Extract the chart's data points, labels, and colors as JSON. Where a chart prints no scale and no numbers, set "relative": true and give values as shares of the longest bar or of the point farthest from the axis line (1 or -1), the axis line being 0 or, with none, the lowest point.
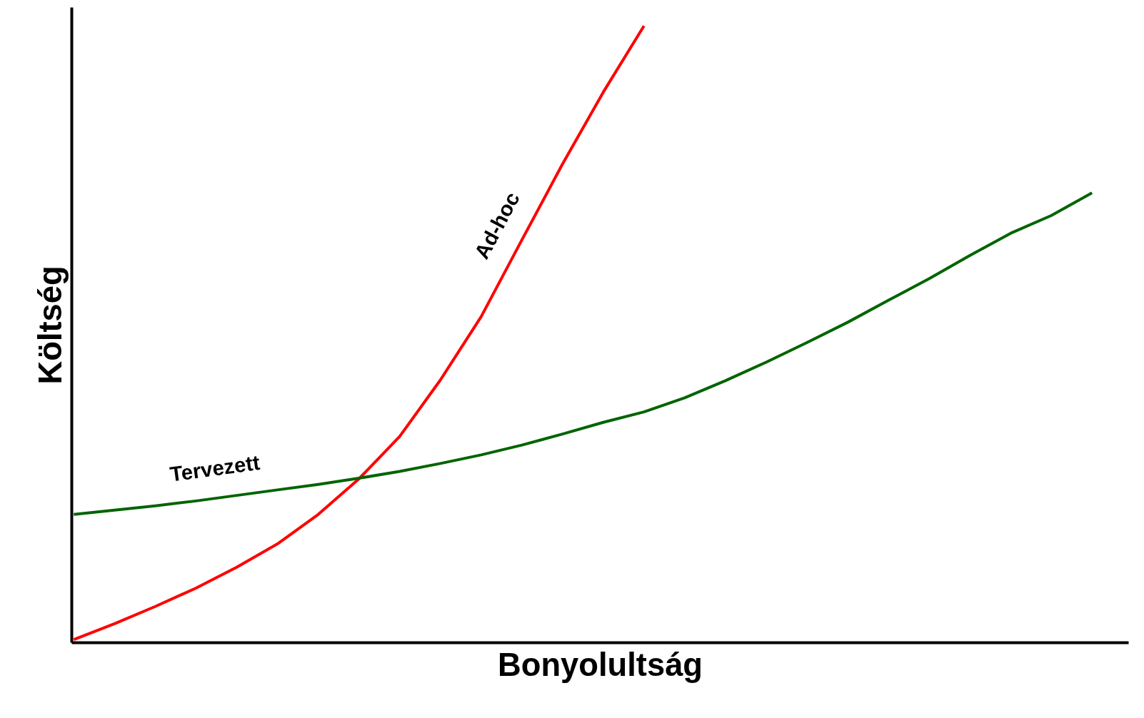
{
  "chart_data": {
    "type": "line",
    "relative": true,
    "xlabel": "Bonyolultság",
    "ylabel": "Költség",
    "categories": [
      null,
      null,
      null,
      null,
      null,
      null,
      null,
      null,
      null,
      null,
      null,
      null,
      null,
      null,
      null,
      null,
      null,
      null,
      null,
      null,
      null,
      null,
      null,
      null,
      null,
      null
    ],
    "series": [
      {
        "name": "Ad-hoc",
        "color": "#ff0000",
        "values": [
          0,
          0.026,
          0.054,
          0.084,
          0.118,
          0.156,
          0.204,
          0.262,
          0.331,
          0.423,
          0.526,
          0.651,
          0.775,
          0.892,
          1.0,
          null,
          null,
          null,
          null,
          null,
          null,
          null,
          null,
          null,
          null,
          null
        ]
      },
      {
        "name": "Tervezett",
        "color": "#006400",
        "values": [
          0.204,
          0.211,
          0.218,
          0.226,
          0.235,
          0.244,
          0.253,
          0.263,
          0.274,
          0.287,
          0.301,
          0.317,
          0.335,
          0.354,
          0.371,
          0.394,
          0.422,
          0.452,
          0.484,
          0.517,
          0.553,
          0.588,
          0.626,
          0.662,
          0.691,
          0.728
        ]
      }
    ],
    "grid": false,
    "legend": false,
    "marker": "none",
    "line_style": "solid"
  }
}
